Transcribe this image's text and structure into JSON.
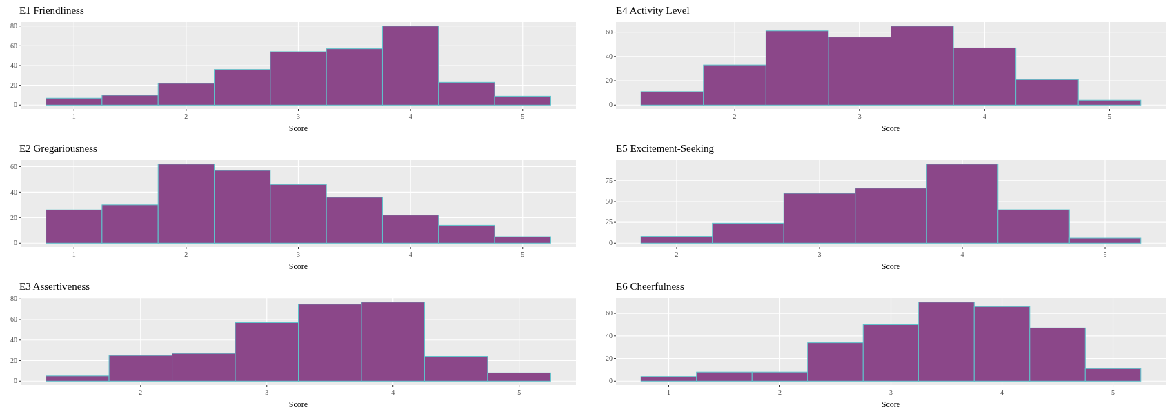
{
  "chart_data": [
    {
      "type": "histogram",
      "title": "E1 Friendliness",
      "xlabel": "Score",
      "bins": [
        0.75,
        1.25,
        1.75,
        2.25,
        2.75,
        3.25,
        3.75,
        4.25,
        4.75,
        5.25
      ],
      "values": [
        7,
        10,
        22,
        36,
        54,
        57,
        80,
        23,
        9
      ],
      "color": "#8b4789",
      "xlim": [
        0.525,
        5.475
      ],
      "xticks": [
        1,
        2,
        3,
        4,
        5
      ],
      "ylim": [
        -4,
        84
      ],
      "yticks": [
        0,
        20,
        40,
        60,
        80
      ],
      "grid": true
    },
    {
      "type": "histogram",
      "title": "E4 Activity Level",
      "xlabel": "Score",
      "bins": [
        1.25,
        1.75,
        2.25,
        2.75,
        3.25,
        3.75,
        4.25,
        4.75,
        5.25
      ],
      "values": [
        11,
        33,
        61,
        56,
        65,
        47,
        21,
        4
      ],
      "color": "#8b4789",
      "xlim": [
        1.05,
        5.45
      ],
      "xticks": [
        2,
        3,
        4,
        5
      ],
      "ylim": [
        -3.25,
        68.25
      ],
      "yticks": [
        0,
        20,
        40,
        60
      ],
      "grid": true
    },
    {
      "type": "histogram",
      "title": "E2 Gregariousness",
      "xlabel": "Score",
      "bins": [
        0.75,
        1.25,
        1.75,
        2.25,
        2.75,
        3.25,
        3.75,
        4.25,
        4.75,
        5.25
      ],
      "values": [
        26,
        30,
        62,
        57,
        46,
        36,
        22,
        14,
        5
      ],
      "color": "#8b4789",
      "xlim": [
        0.525,
        5.475
      ],
      "xticks": [
        1,
        2,
        3,
        4,
        5
      ],
      "ylim": [
        -3.1,
        65.1
      ],
      "yticks": [
        0,
        20,
        40,
        60
      ],
      "grid": true
    },
    {
      "type": "histogram",
      "title": "E5 Excitement-Seeking",
      "xlabel": "Score",
      "bins": [
        1.75,
        2.25,
        2.75,
        3.25,
        3.75,
        4.25,
        4.75,
        5.25
      ],
      "values": [
        8,
        24,
        60,
        66,
        95,
        40,
        6
      ],
      "color": "#8b4789",
      "xlim": [
        1.575,
        5.425
      ],
      "xticks": [
        2,
        3,
        4,
        5
      ],
      "ylim": [
        -4.75,
        99.75
      ],
      "yticks": [
        0,
        25,
        50,
        75
      ],
      "grid": true
    },
    {
      "type": "histogram",
      "title": "E3 Assertiveness",
      "xlabel": "Score",
      "bins": [
        1.25,
        1.75,
        2.25,
        2.75,
        3.25,
        3.75,
        4.25,
        4.75,
        5.25
      ],
      "values": [
        5,
        25,
        27,
        57,
        75,
        77,
        24,
        8
      ],
      "color": "#8b4789",
      "xlim": [
        1.05,
        5.45
      ],
      "xticks": [
        2,
        3,
        4,
        5
      ],
      "ylim": [
        -3.85,
        80.85
      ],
      "yticks": [
        0,
        20,
        40,
        60,
        80
      ],
      "grid": true
    },
    {
      "type": "histogram",
      "title": "E6 Cheerfulness",
      "xlabel": "Score",
      "bins": [
        0.75,
        1.25,
        1.75,
        2.25,
        2.75,
        3.25,
        3.75,
        4.25,
        4.75,
        5.25
      ],
      "values": [
        4,
        8,
        8,
        34,
        50,
        70,
        66,
        47,
        11
      ],
      "color": "#8b4789",
      "xlim": [
        0.525,
        5.475
      ],
      "xticks": [
        1,
        2,
        3,
        4,
        5
      ],
      "ylim": [
        -3.5,
        73.5
      ],
      "yticks": [
        0,
        20,
        40,
        60
      ],
      "grid": true
    }
  ]
}
